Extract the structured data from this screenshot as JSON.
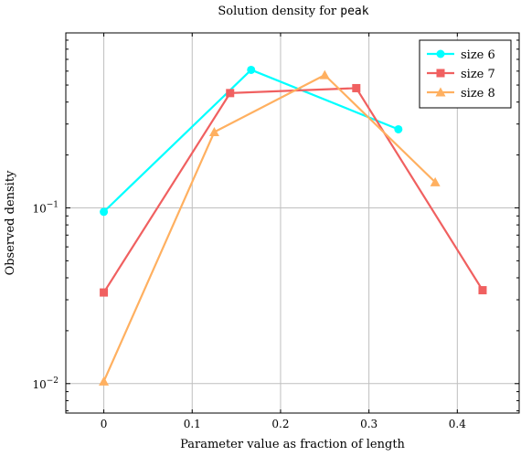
{
  "chart_data": {
    "type": "line",
    "title_prefix": "Solution density for ",
    "title_code": "peak",
    "xlabel": "Parameter value as fraction of length",
    "ylabel": "Observed density",
    "xlim": [
      -0.043,
      0.47
    ],
    "ylim": [
      0.0068,
      0.99
    ],
    "yscale": "log",
    "grid": true,
    "legend_position": "top-right",
    "x_ticks": [
      0,
      0.1,
      0.2,
      0.3,
      0.4
    ],
    "x_tick_labels": [
      "0",
      "0.1",
      "0.2",
      "0.3",
      "0.4"
    ],
    "y_ticks": [
      {
        "value": 0.01,
        "base": "10",
        "exp": "−2"
      },
      {
        "value": 0.1,
        "base": "10",
        "exp": "−1"
      }
    ],
    "series": [
      {
        "name": "size 6",
        "color": "#00ffff",
        "marker": "circle",
        "x": [
          0,
          0.1667,
          0.3333
        ],
        "y": [
          0.095,
          0.61,
          0.28
        ]
      },
      {
        "name": "size 7",
        "color": "#f06060",
        "marker": "square",
        "x": [
          0,
          0.1429,
          0.2857,
          0.4286
        ],
        "y": [
          0.033,
          0.45,
          0.48,
          0.034
        ]
      },
      {
        "name": "size 8",
        "color": "#ffb060",
        "marker": "triangle",
        "x": [
          0,
          0.125,
          0.25,
          0.375
        ],
        "y": [
          0.0103,
          0.27,
          0.57,
          0.14
        ]
      }
    ]
  }
}
